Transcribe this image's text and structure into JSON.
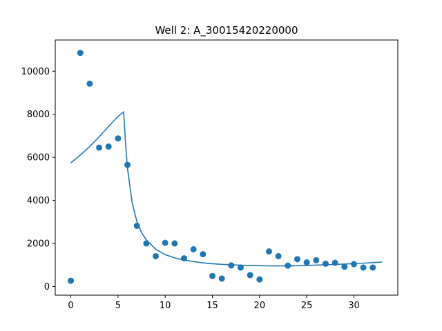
{
  "chart_data": {
    "type": "scatter",
    "title": "Well 2: A_30015420220000",
    "xlabel": "",
    "ylabel": "",
    "xlim": [
      -1.65,
      34.65
    ],
    "ylim": [
      -400,
      11450
    ],
    "xticks": [
      0,
      5,
      10,
      15,
      20,
      25,
      30
    ],
    "yticks": [
      0,
      2000,
      4000,
      6000,
      8000,
      10000
    ],
    "grid": false,
    "color": "#1f77b4",
    "series": [
      {
        "kind": "scatter",
        "points": [
          [
            0,
            270
          ],
          [
            1,
            10850
          ],
          [
            2,
            9420
          ],
          [
            3,
            6450
          ],
          [
            4,
            6500
          ],
          [
            5,
            6880
          ],
          [
            6,
            5650
          ],
          [
            7,
            2820
          ],
          [
            8,
            2000
          ],
          [
            9,
            1410
          ],
          [
            10,
            2030
          ],
          [
            11,
            2000
          ],
          [
            12,
            1310
          ],
          [
            13,
            1730
          ],
          [
            14,
            1500
          ],
          [
            15,
            490
          ],
          [
            16,
            370
          ],
          [
            17,
            980
          ],
          [
            18,
            880
          ],
          [
            19,
            530
          ],
          [
            20,
            330
          ],
          [
            21,
            1630
          ],
          [
            22,
            1410
          ],
          [
            23,
            970
          ],
          [
            24,
            1270
          ],
          [
            25,
            1120
          ],
          [
            26,
            1220
          ],
          [
            27,
            1060
          ],
          [
            28,
            1100
          ],
          [
            29,
            920
          ],
          [
            30,
            1040
          ],
          [
            31,
            880
          ],
          [
            32,
            880
          ]
        ]
      },
      {
        "kind": "line",
        "points": [
          [
            0,
            5740
          ],
          [
            1,
            6100
          ],
          [
            2,
            6500
          ],
          [
            3,
            6950
          ],
          [
            4,
            7430
          ],
          [
            5,
            7900
          ],
          [
            5.6,
            8110
          ],
          [
            5.8,
            6650
          ],
          [
            6,
            5500
          ],
          [
            6.5,
            3900
          ],
          [
            7,
            3020
          ],
          [
            7.5,
            2500
          ],
          [
            8,
            2170
          ],
          [
            9,
            1730
          ],
          [
            10,
            1480
          ],
          [
            11,
            1330
          ],
          [
            12,
            1230
          ],
          [
            13,
            1160
          ],
          [
            14,
            1100
          ],
          [
            15,
            1060
          ],
          [
            16,
            1030
          ],
          [
            17,
            1010
          ],
          [
            18,
            990
          ],
          [
            19,
            975
          ],
          [
            20,
            968
          ],
          [
            21,
            960
          ],
          [
            22,
            958
          ],
          [
            23,
            960
          ],
          [
            24,
            968
          ],
          [
            25,
            980
          ],
          [
            26,
            995
          ],
          [
            27,
            1010
          ],
          [
            28,
            1025
          ],
          [
            29,
            1045
          ],
          [
            30,
            1065
          ],
          [
            31,
            1085
          ],
          [
            32,
            1110
          ],
          [
            33,
            1135
          ]
        ]
      }
    ]
  }
}
